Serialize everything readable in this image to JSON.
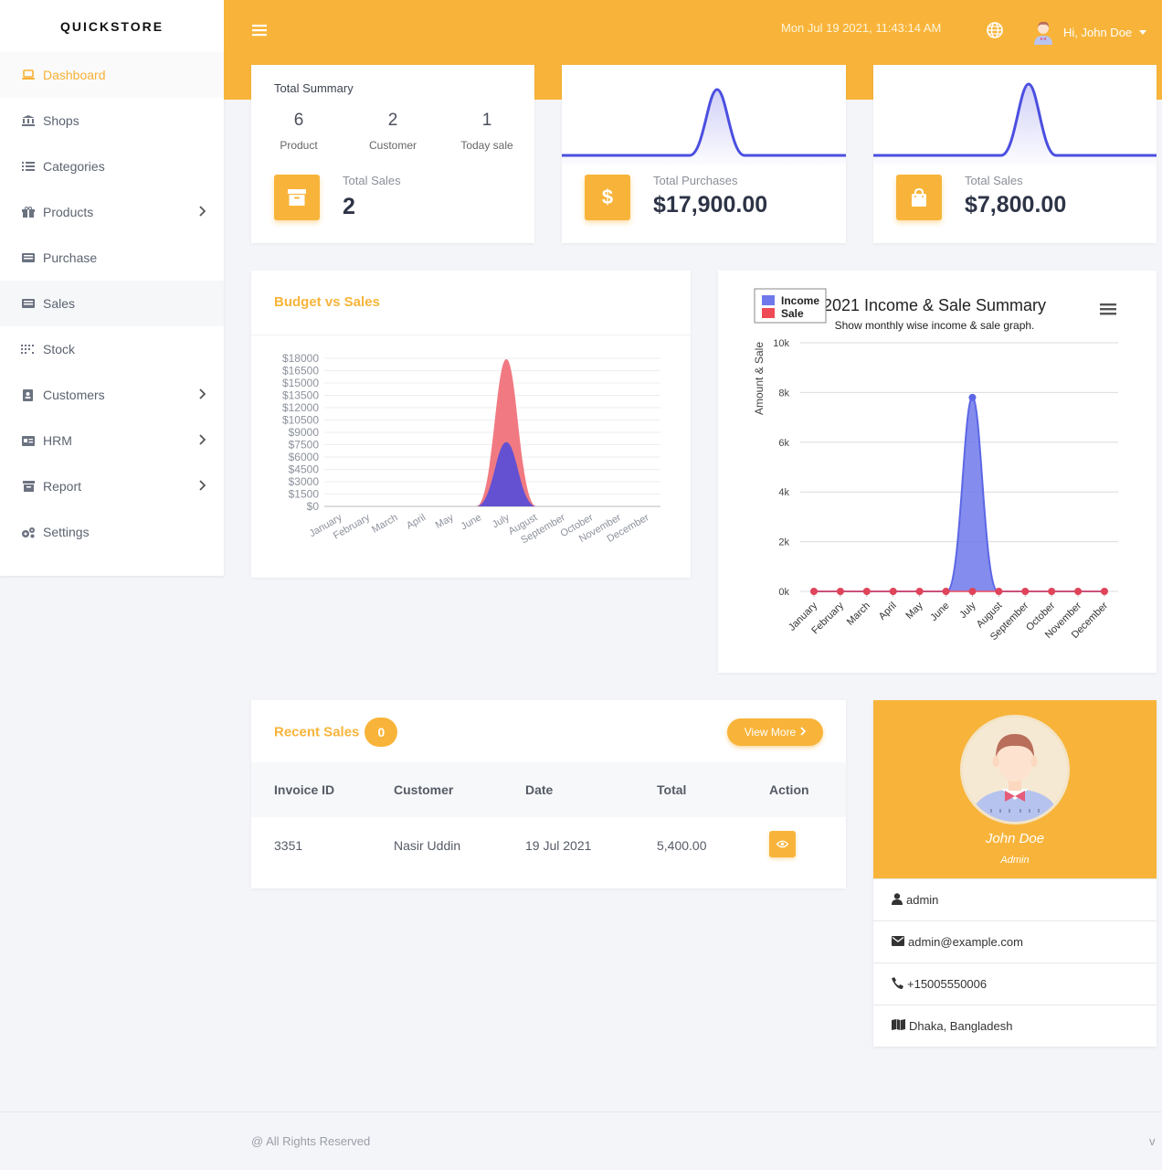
{
  "brand": "QUICKSTORE",
  "sidebar": {
    "items": [
      {
        "label": "Dashboard",
        "icon": "laptop-icon",
        "active": true
      },
      {
        "label": "Shops",
        "icon": "bank-icon"
      },
      {
        "label": "Categories",
        "icon": "list-icon"
      },
      {
        "label": "Products",
        "icon": "gift-icon",
        "submenu": true
      },
      {
        "label": "Purchase",
        "icon": "receipt-icon"
      },
      {
        "label": "Sales",
        "icon": "receipt-icon"
      },
      {
        "label": "Stock",
        "icon": "grid-dots-icon"
      },
      {
        "label": "Customers",
        "icon": "address-book-icon",
        "submenu": true
      },
      {
        "label": "HRM",
        "icon": "id-card-icon",
        "submenu": true
      },
      {
        "label": "Report",
        "icon": "archive-icon",
        "submenu": true
      },
      {
        "label": "Settings",
        "icon": "cogs-icon"
      }
    ]
  },
  "header": {
    "datetime": "Mon Jul 19 2021, 11:43:14 AM",
    "greeting": "Hi, John Doe"
  },
  "summary": {
    "title": "Total Summary",
    "product_count": "6",
    "product_label": "Product",
    "customer_count": "2",
    "customer_label": "Customer",
    "today_count": "1",
    "today_label": "Today sale",
    "total_sales_label": "Total Sales",
    "total_sales_value": "2"
  },
  "purchases_card": {
    "label": "Total Purchases",
    "value": "$17,900.00"
  },
  "sales_card": {
    "label": "Total Sales",
    "value": "$7,800.00"
  },
  "budget_chart": {
    "title": "Budget vs Sales",
    "chart_data": {
      "type": "area",
      "categories": [
        "January",
        "February",
        "March",
        "April",
        "May",
        "June",
        "July",
        "August",
        "September",
        "October",
        "November",
        "December"
      ],
      "series": [
        {
          "values": [
            0,
            0,
            0,
            0,
            0,
            0,
            17900,
            0,
            0,
            0,
            0,
            0
          ],
          "color": "#ef6b74"
        },
        {
          "values": [
            0,
            0,
            0,
            0,
            0,
            0,
            7800,
            0,
            0,
            0,
            0,
            0
          ],
          "color": "#5b4fd6"
        }
      ],
      "ylim": [
        0,
        18000
      ],
      "yticks": [
        "$18000",
        "$16500",
        "$15000",
        "$13500",
        "$12000",
        "$10500",
        "$9000",
        "$7500",
        "$6000",
        "$4500",
        "$3000",
        "$1500",
        "$0"
      ]
    }
  },
  "income_chart": {
    "title": "2021 Income & Sale Summary",
    "subtitle": "Show monthly wise income & sale graph.",
    "ylabel": "Amount & Sale",
    "legend": [
      "Income",
      "Sale"
    ],
    "chart_data": {
      "type": "area",
      "categories": [
        "January",
        "February",
        "March",
        "April",
        "May",
        "June",
        "July",
        "August",
        "September",
        "October",
        "November",
        "December"
      ],
      "series": [
        {
          "name": "Income",
          "values": [
            0,
            0,
            0,
            0,
            0,
            0,
            7800,
            0,
            0,
            0,
            0,
            0
          ],
          "color": "#6f79ea"
        },
        {
          "name": "Sale",
          "values": [
            0,
            0,
            0,
            0,
            0,
            0,
            0,
            0,
            0,
            0,
            0,
            0
          ],
          "color": "#ef4b57"
        }
      ],
      "ylim": [
        0,
        10000
      ],
      "yticks": [
        "10k",
        "8k",
        "6k",
        "4k",
        "2k",
        "0k"
      ],
      "legend_position": "top-left"
    }
  },
  "recent_sales": {
    "title": "Recent Sales",
    "badge": "0",
    "view_more": "View More",
    "columns": [
      "Invoice ID",
      "Customer",
      "Date",
      "Total",
      "Action"
    ],
    "rows": [
      {
        "invoice": "3351",
        "customer": "Nasir Uddin",
        "date": "19 Jul 2021",
        "total": "5,400.00"
      }
    ]
  },
  "profile": {
    "name": "John Doe",
    "role": "Admin",
    "username": "admin",
    "email": "admin@example.com",
    "phone": "+15005550006",
    "location": "Dhaka, Bangladesh"
  },
  "footer": {
    "text": "@ All Rights Reserved",
    "version": "v"
  },
  "colors": {
    "accent": "#f8b43a",
    "line": "#4b4fe0"
  }
}
